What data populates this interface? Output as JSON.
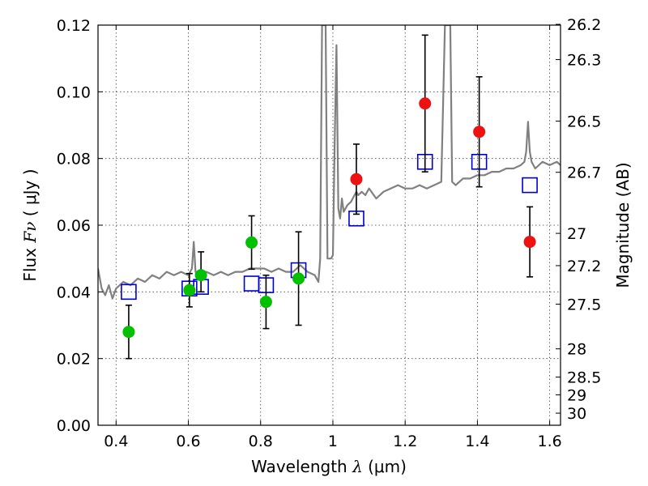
{
  "chart_data": {
    "type": "scatter",
    "xlabel": {
      "pre": "Wavelength ",
      "sym": "λ",
      "post": " (μm)"
    },
    "ylabel": {
      "pre": "Flux ",
      "sym": "Fν",
      "post": " ( μJy )"
    },
    "ylabel_right": "Magnitude (AB)",
    "xlim": [
      0.35,
      1.63
    ],
    "ylim": [
      0.0,
      0.12
    ],
    "x_ticks": [
      {
        "v": 0.4,
        "label": "0.4"
      },
      {
        "v": 0.6,
        "label": "0.6"
      },
      {
        "v": 0.8,
        "label": "0.8"
      },
      {
        "v": 1.0,
        "label": "1"
      },
      {
        "v": 1.2,
        "label": "1.2"
      },
      {
        "v": 1.4,
        "label": "1.4"
      },
      {
        "v": 1.6,
        "label": "1.6"
      }
    ],
    "y_ticks": [
      {
        "v": 0.0,
        "label": "0.00"
      },
      {
        "v": 0.02,
        "label": "0.02"
      },
      {
        "v": 0.04,
        "label": "0.04"
      },
      {
        "v": 0.06,
        "label": "0.06"
      },
      {
        "v": 0.08,
        "label": "0.08"
      },
      {
        "v": 0.1,
        "label": "0.10"
      },
      {
        "v": 0.12,
        "label": "0.12"
      }
    ],
    "mag_ticks": [
      {
        "v": 26.2,
        "label": "26.2"
      },
      {
        "v": 26.3,
        "label": "26.3"
      },
      {
        "v": 26.5,
        "label": "26.5"
      },
      {
        "v": 26.7,
        "label": "26.7"
      },
      {
        "v": 27.0,
        "label": "27"
      },
      {
        "v": 27.2,
        "label": "27.2"
      },
      {
        "v": 27.5,
        "label": "27.5"
      },
      {
        "v": 28.0,
        "label": "28"
      },
      {
        "v": 28.5,
        "label": "28.5"
      },
      {
        "v": 29.0,
        "label": "29"
      },
      {
        "v": 30.0,
        "label": "30"
      }
    ],
    "grid": true,
    "colors": {
      "spectrum": "#808080",
      "observed_optical": "#00c000",
      "observed_nir": "#ee1111",
      "model": "#0000cc",
      "errorbar": "#000000"
    },
    "series": [
      {
        "kind": "line",
        "color_key": "spectrum",
        "x": [
          0.35,
          0.36,
          0.37,
          0.38,
          0.39,
          0.4,
          0.42,
          0.44,
          0.46,
          0.48,
          0.5,
          0.52,
          0.54,
          0.56,
          0.58,
          0.6,
          0.61,
          0.615,
          0.62,
          0.625,
          0.63,
          0.65,
          0.67,
          0.69,
          0.71,
          0.73,
          0.75,
          0.77,
          0.79,
          0.81,
          0.83,
          0.85,
          0.87,
          0.89,
          0.91,
          0.93,
          0.95,
          0.96,
          0.965,
          0.97,
          0.975,
          0.98,
          0.985,
          0.99,
          0.995,
          1.0,
          1.005,
          1.01,
          1.015,
          1.02,
          1.025,
          1.03,
          1.04,
          1.05,
          1.06,
          1.065,
          1.07,
          1.08,
          1.09,
          1.1,
          1.12,
          1.14,
          1.16,
          1.18,
          1.2,
          1.22,
          1.24,
          1.26,
          1.28,
          1.3,
          1.31,
          1.315,
          1.32,
          1.325,
          1.33,
          1.34,
          1.36,
          1.38,
          1.4,
          1.42,
          1.44,
          1.46,
          1.48,
          1.5,
          1.52,
          1.53,
          1.535,
          1.54,
          1.545,
          1.55,
          1.56,
          1.58,
          1.6,
          1.62,
          1.63
        ],
        "y": [
          0.047,
          0.041,
          0.039,
          0.042,
          0.038,
          0.041,
          0.043,
          0.042,
          0.044,
          0.043,
          0.045,
          0.044,
          0.046,
          0.045,
          0.046,
          0.045,
          0.047,
          0.055,
          0.046,
          0.045,
          0.046,
          0.046,
          0.045,
          0.046,
          0.045,
          0.046,
          0.046,
          0.047,
          0.047,
          0.047,
          0.046,
          0.047,
          0.046,
          0.046,
          0.048,
          0.046,
          0.045,
          0.043,
          0.05,
          0.12,
          0.12,
          0.12,
          0.05,
          0.05,
          0.05,
          0.051,
          0.085,
          0.114,
          0.065,
          0.062,
          0.068,
          0.064,
          0.066,
          0.067,
          0.069,
          0.07,
          0.069,
          0.07,
          0.069,
          0.071,
          0.068,
          0.07,
          0.071,
          0.072,
          0.071,
          0.071,
          0.072,
          0.071,
          0.072,
          0.073,
          0.12,
          0.12,
          0.12,
          0.12,
          0.073,
          0.072,
          0.074,
          0.074,
          0.075,
          0.075,
          0.076,
          0.076,
          0.077,
          0.077,
          0.078,
          0.079,
          0.082,
          0.091,
          0.082,
          0.079,
          0.077,
          0.079,
          0.078,
          0.079,
          0.078
        ]
      },
      {
        "kind": "markers",
        "shape": "square",
        "color_key": "model",
        "x": [
          0.435,
          0.603,
          0.635,
          0.775,
          0.815,
          0.905,
          1.065,
          1.255,
          1.405,
          1.545
        ],
        "y": [
          0.04,
          0.041,
          0.0415,
          0.0425,
          0.042,
          0.0465,
          0.062,
          0.079,
          0.079,
          0.072
        ]
      },
      {
        "kind": "markers",
        "shape": "circle",
        "color_key": "observed_optical",
        "x": [
          0.435,
          0.603,
          0.635,
          0.775,
          0.815,
          0.905
        ],
        "y": [
          0.028,
          0.0405,
          0.045,
          0.0548,
          0.037,
          0.044
        ],
        "err_lo": [
          0.008,
          0.005,
          0.005,
          0.008,
          0.008,
          0.014
        ],
        "err_hi": [
          0.008,
          0.005,
          0.007,
          0.008,
          0.008,
          0.014
        ]
      },
      {
        "kind": "markers",
        "shape": "circle",
        "color_key": "observed_nir",
        "x": [
          1.065,
          1.255,
          1.405,
          1.545
        ],
        "y": [
          0.0738,
          0.0965,
          0.088,
          0.055
        ],
        "err_lo": [
          0.0105,
          0.0205,
          0.0165,
          0.0105
        ],
        "err_hi": [
          0.0105,
          0.0205,
          0.0165,
          0.0105
        ]
      }
    ]
  }
}
